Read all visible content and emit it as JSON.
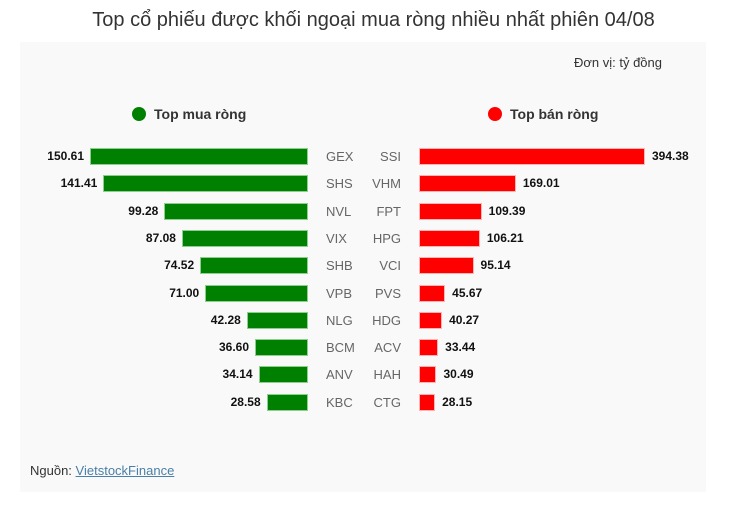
{
  "title": "Top cổ phiếu được khối ngoại mua ròng nhiều nhất phiên 04/08",
  "unit_label": "Đơn vị: tỷ đồng",
  "legend": {
    "buy": {
      "label": "Top mua ròng",
      "color": "#008000"
    },
    "sell": {
      "label": "Top bán ròng",
      "color": "#ff0000"
    }
  },
  "source": {
    "prefix": "Nguồn:",
    "link_text": "VietstockFinance"
  },
  "chart_data": [
    {
      "type": "bar",
      "orientation": "horizontal",
      "title": "Top mua ròng",
      "unit": "tỷ đồng",
      "categories": [
        "GEX",
        "SHS",
        "NVL",
        "VIX",
        "SHB",
        "VPB",
        "NLG",
        "BCM",
        "ANV",
        "KBC"
      ],
      "values": [
        150.61,
        141.41,
        99.28,
        87.08,
        74.52,
        71.0,
        42.28,
        36.6,
        34.14,
        28.58
      ],
      "color": "#008000",
      "value_labels": [
        "150.61",
        "141.41",
        "99.28",
        "87.08",
        "74.52",
        "71.00",
        "42.28",
        "36.60",
        "34.14",
        "28.58"
      ],
      "direction": "bars extend leftward",
      "grid": false
    },
    {
      "type": "bar",
      "orientation": "horizontal",
      "title": "Top bán ròng",
      "unit": "tỷ đồng",
      "categories": [
        "SSI",
        "VHM",
        "FPT",
        "HPG",
        "VCI",
        "PVS",
        "HDG",
        "ACV",
        "HAH",
        "CTG"
      ],
      "values": [
        394.38,
        169.01,
        109.39,
        106.21,
        95.14,
        45.67,
        40.27,
        33.44,
        30.49,
        28.15
      ],
      "color": "#ff0000",
      "value_labels": [
        "394.38",
        "169.01",
        "109.39",
        "106.21",
        "95.14",
        "45.67",
        "40.27",
        "33.44",
        "30.49",
        "28.15"
      ],
      "direction": "bars extend rightward",
      "grid": false
    }
  ]
}
